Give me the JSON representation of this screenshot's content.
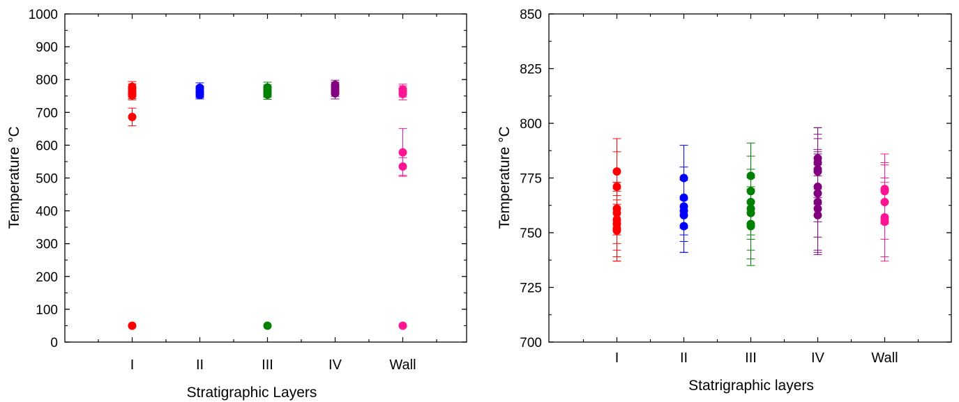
{
  "chart_data": [
    {
      "type": "scatter",
      "title": "",
      "xlabel": "Stratigraphic Layers",
      "ylabel": "Temperature °C",
      "categories": [
        "I",
        "II",
        "III",
        "IV",
        "Wall"
      ],
      "ylim": [
        0,
        1000
      ],
      "yticks": [
        0,
        100,
        200,
        300,
        400,
        500,
        600,
        700,
        800,
        900,
        1000
      ],
      "grid": false,
      "legend": "none",
      "series": [
        {
          "category": "I",
          "color": "#ff0000",
          "points": [
            {
              "y": 778,
              "err": 16
            },
            {
              "y": 771,
              "err": 16
            },
            {
              "y": 761,
              "err": 14
            },
            {
              "y": 756,
              "err": 14
            },
            {
              "y": 752,
              "err": 14
            },
            {
              "y": 686,
              "err": 27
            },
            {
              "y": 50,
              "err": 0
            }
          ]
        },
        {
          "category": "II",
          "color": "#0000ff",
          "points": [
            {
              "y": 775,
              "err": 15
            },
            {
              "y": 766,
              "err": 14
            },
            {
              "y": 761,
              "err": 14
            },
            {
              "y": 758,
              "err": 13
            },
            {
              "y": 753,
              "err": 12
            }
          ]
        },
        {
          "category": "III",
          "color": "#008000",
          "points": [
            {
              "y": 776,
              "err": 16
            },
            {
              "y": 769,
              "err": 15
            },
            {
              "y": 764,
              "err": 15
            },
            {
              "y": 760,
              "err": 14
            },
            {
              "y": 754,
              "err": 14
            },
            {
              "y": 50,
              "err": 0
            }
          ]
        },
        {
          "category": "IV",
          "color": "#800080",
          "points": [
            {
              "y": 784,
              "err": 14
            },
            {
              "y": 778,
              "err": 14
            },
            {
              "y": 770,
              "err": 15
            },
            {
              "y": 764,
              "err": 15
            },
            {
              "y": 758,
              "err": 17
            }
          ]
        },
        {
          "category": "Wall",
          "color": "#ff1493",
          "points": [
            {
              "y": 770,
              "err": 16
            },
            {
              "y": 764,
              "err": 17
            },
            {
              "y": 756,
              "err": 18
            },
            {
              "y": 578,
              "err": 73
            },
            {
              "y": 535,
              "err": 27
            },
            {
              "y": 50,
              "err": 0
            }
          ]
        }
      ]
    },
    {
      "type": "scatter",
      "title": "",
      "xlabel": "Statrigraphic  layers",
      "ylabel": "Temperature °C",
      "categories": [
        "I",
        "II",
        "III",
        "IV",
        "Wall"
      ],
      "ylim": [
        700,
        850
      ],
      "yticks": [
        700,
        725,
        750,
        775,
        800,
        825,
        850
      ],
      "grid": false,
      "legend": "none",
      "series": [
        {
          "category": "I",
          "color": "#ff0000",
          "points": [
            {
              "y": 778,
              "err": 15
            },
            {
              "y": 771,
              "err": 16
            },
            {
              "y": 761,
              "err": 12
            },
            {
              "y": 759,
              "err": 14
            },
            {
              "y": 756,
              "err": 14
            },
            {
              "y": 754,
              "err": 15
            },
            {
              "y": 752,
              "err": 15
            },
            {
              "y": 751,
              "err": 14
            }
          ]
        },
        {
          "category": "II",
          "color": "#0000ff",
          "points": [
            {
              "y": 775,
              "err": 15
            },
            {
              "y": 766,
              "err": 14
            },
            {
              "y": 762,
              "err": 13
            },
            {
              "y": 760,
              "err": 14
            },
            {
              "y": 758,
              "err": 17
            },
            {
              "y": 753,
              "err": 12
            }
          ]
        },
        {
          "category": "III",
          "color": "#008000",
          "points": [
            {
              "y": 776,
              "err": 15
            },
            {
              "y": 769,
              "err": 16
            },
            {
              "y": 764,
              "err": 15
            },
            {
              "y": 761,
              "err": 14
            },
            {
              "y": 759,
              "err": 17
            },
            {
              "y": 754,
              "err": 16
            },
            {
              "y": 753,
              "err": 18
            }
          ]
        },
        {
          "category": "IV",
          "color": "#800080",
          "points": [
            {
              "y": 784,
              "err": 14
            },
            {
              "y": 782,
              "err": 16
            },
            {
              "y": 779,
              "err": 16
            },
            {
              "y": 778,
              "err": 15
            },
            {
              "y": 771,
              "err": 16
            },
            {
              "y": 768,
              "err": 20
            },
            {
              "y": 764,
              "err": 22
            },
            {
              "y": 761,
              "err": 20
            },
            {
              "y": 758,
              "err": 18
            }
          ]
        },
        {
          "category": "Wall",
          "color": "#ff1493",
          "points": [
            {
              "y": 770,
              "err": 16
            },
            {
              "y": 769,
              "err": 13
            },
            {
              "y": 764,
              "err": 17
            },
            {
              "y": 757,
              "err": 18
            },
            {
              "y": 755,
              "err": 18
            }
          ]
        }
      ]
    }
  ]
}
